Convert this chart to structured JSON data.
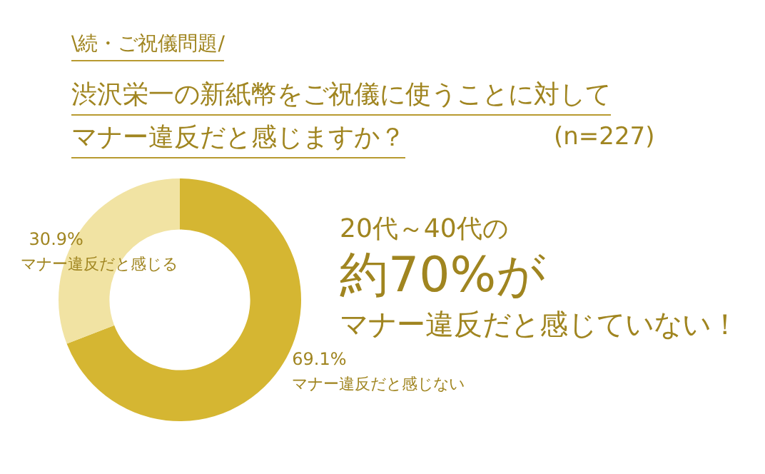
{
  "chart_data": {
    "type": "donut",
    "subtitle": "\\続・ご祝儀問題/",
    "title": "渋沢栄一の新紙幣をご祝儀に使うことに対してマナー違反だと感じますか？",
    "categories": [
      "マナー違反だと感じない",
      "マナー違反だと感じる"
    ],
    "values": [
      69.1,
      30.9
    ],
    "colors": [
      "#d5b632",
      "#f1e3a3"
    ],
    "value_labels": [
      "69.1%",
      "30.9%"
    ],
    "annotations": [
      "(n=227)",
      "20代～40代の",
      "約70%が",
      "マナー違反だと感じていない！"
    ]
  }
}
